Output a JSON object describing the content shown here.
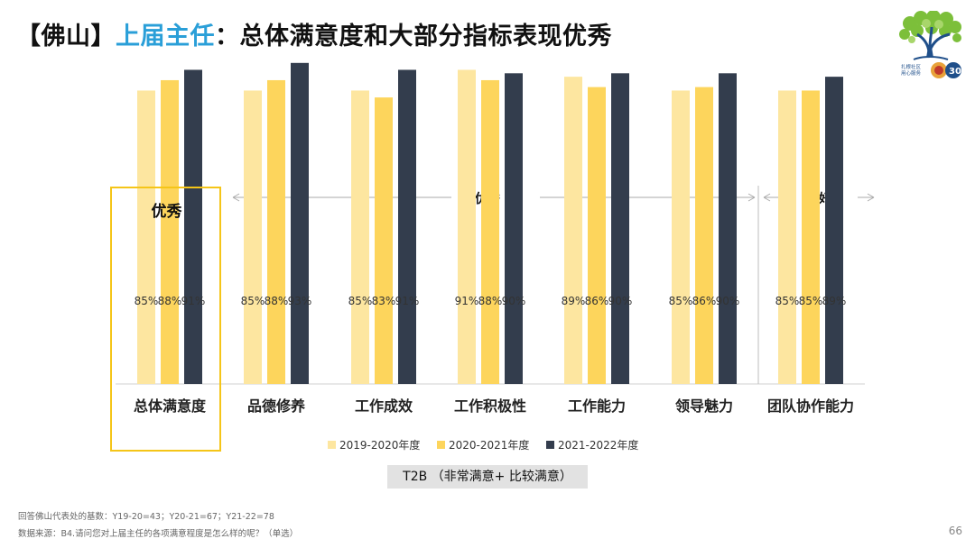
{
  "header": {
    "title_prefix": "【佛山】",
    "title_highlight": "上届主任",
    "title_rest": "：总体满意度和大部分指标表现优秀"
  },
  "colors": {
    "accent_blue": "#2a9fd8",
    "highlight_yellow": "#f5c518",
    "series_1": "#fde6a0",
    "series_2": "#fdd55c",
    "series_3": "#333d4d"
  },
  "logo": {
    "icon": "tree-logo-icon",
    "text": "扎根社区 用心服务"
  },
  "highlight": {
    "label": "优秀"
  },
  "chart_data": {
    "type": "bar",
    "title": "",
    "xlabel": "",
    "ylabel": "",
    "ylim": [
      0,
      100
    ],
    "categories": [
      "总体满意度",
      "品德修养",
      "工作成效",
      "工作积极性",
      "工作能力",
      "领导魅力",
      "团队协作能力"
    ],
    "series": [
      {
        "name": "2019-2020年度",
        "values": [
          85,
          85,
          85,
          91,
          89,
          85,
          85
        ],
        "labels": [
          "85%",
          "85%",
          "85%",
          "91%",
          "89%",
          "85%",
          "85%"
        ]
      },
      {
        "name": "2020-2021年度",
        "values": [
          88,
          88,
          83,
          88,
          86,
          86,
          85
        ],
        "labels": [
          "88%",
          "88%",
          "83%",
          "88%",
          "86%",
          "86%",
          "85%"
        ]
      },
      {
        "name": "2021-2022年度",
        "values": [
          91,
          93,
          91,
          90,
          90,
          90,
          89
        ],
        "labels": [
          "91%",
          "93%",
          "91%",
          "90%",
          "90%",
          "90%",
          "89%"
        ]
      }
    ],
    "group_labels": {
      "excellent": "优秀",
      "good": "良好"
    },
    "legend_position": "bottom"
  },
  "t2b_label": "T2B （非常满意+ 比较满意）",
  "footnotes": {
    "base": "回答佛山代表处的基数：Y19-20=43；Y20-21=67；Y21-22=78",
    "source": "数据来源：B4.请问您对上届主任的各项满意程度是怎么样的呢？（单选）"
  },
  "page_number": "66"
}
